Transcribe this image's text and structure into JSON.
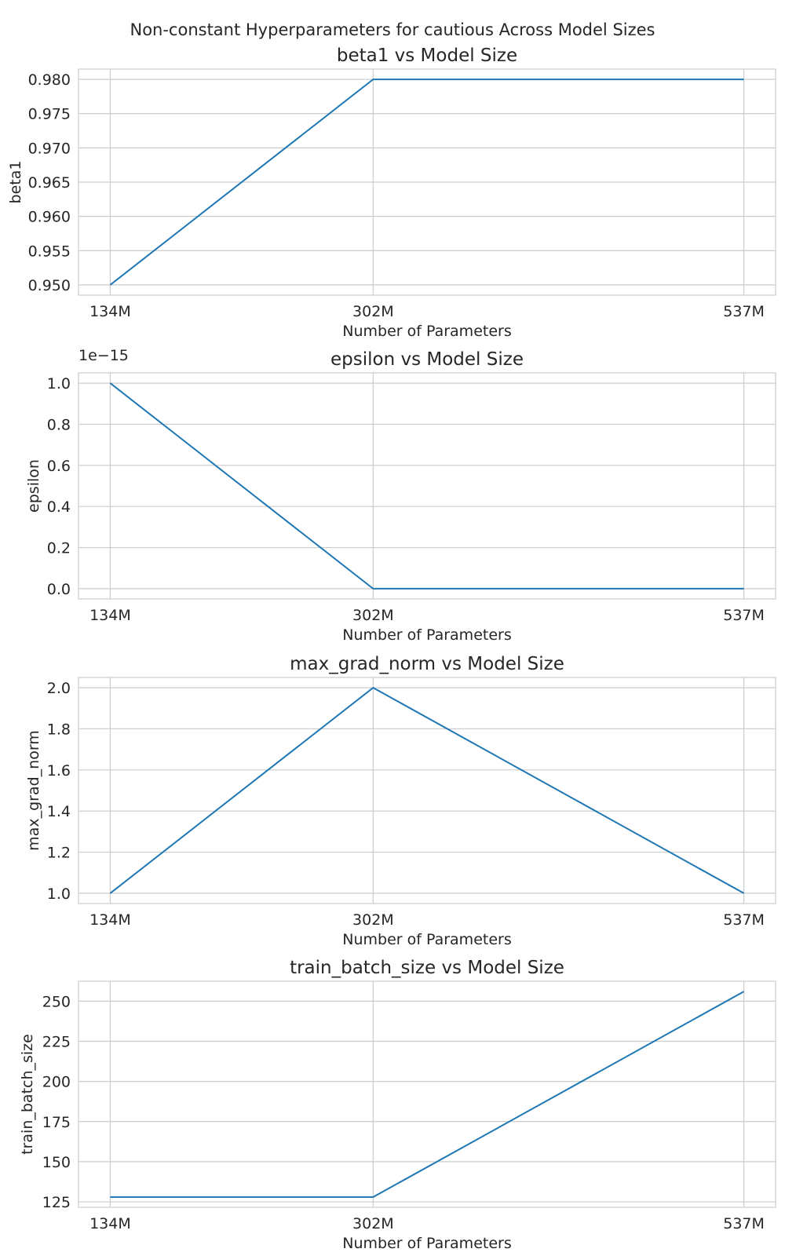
{
  "suptitle": "Non-constant Hyperparameters for cautious Across Model Sizes",
  "line_color": "#1f77b4",
  "grid_color": "#cccccc",
  "chart_data": [
    {
      "type": "line",
      "title": "beta1 vs Model Size",
      "xlabel": "Number of Parameters",
      "ylabel": "beta1",
      "categories": [
        "134M",
        "302M",
        "537M"
      ],
      "values": [
        0.95,
        0.98,
        0.98
      ],
      "ylim": [
        0.9485,
        0.9815
      ],
      "yticks": [
        0.95,
        0.955,
        0.96,
        0.965,
        0.97,
        0.975,
        0.98
      ],
      "ytick_labels": [
        "0.950",
        "0.955",
        "0.960",
        "0.965",
        "0.970",
        "0.975",
        "0.980"
      ],
      "offset_text": "",
      "grid": true
    },
    {
      "type": "line",
      "title": "epsilon vs Model Size",
      "xlabel": "Number of Parameters",
      "ylabel": "epsilon",
      "categories": [
        "134M",
        "302M",
        "537M"
      ],
      "values": [
        1e-15,
        1e-30,
        1e-30
      ],
      "ylim": [
        -5e-17,
        1.05e-15
      ],
      "yticks": [
        0,
        2e-16,
        4e-16,
        6e-16,
        8e-16,
        1e-15
      ],
      "ytick_labels": [
        "0.0",
        "0.2",
        "0.4",
        "0.6",
        "0.8",
        "1.0"
      ],
      "offset_text": "1e−15",
      "grid": true
    },
    {
      "type": "line",
      "title": "max_grad_norm vs Model Size",
      "xlabel": "Number of Parameters",
      "ylabel": "max_grad_norm",
      "categories": [
        "134M",
        "302M",
        "537M"
      ],
      "values": [
        1.0,
        2.0,
        1.0
      ],
      "ylim": [
        0.95,
        2.05
      ],
      "yticks": [
        1.0,
        1.2,
        1.4,
        1.6,
        1.8,
        2.0
      ],
      "ytick_labels": [
        "1.0",
        "1.2",
        "1.4",
        "1.6",
        "1.8",
        "2.0"
      ],
      "offset_text": "",
      "grid": true
    },
    {
      "type": "line",
      "title": "train_batch_size vs Model Size",
      "xlabel": "Number of Parameters",
      "ylabel": "train_batch_size",
      "categories": [
        "134M",
        "302M",
        "537M"
      ],
      "values": [
        128,
        128,
        256
      ],
      "ylim": [
        121.6,
        262.4
      ],
      "yticks": [
        125,
        150,
        175,
        200,
        225,
        250
      ],
      "ytick_labels": [
        "125",
        "150",
        "175",
        "200",
        "225",
        "250"
      ],
      "offset_text": "",
      "grid": true
    }
  ]
}
